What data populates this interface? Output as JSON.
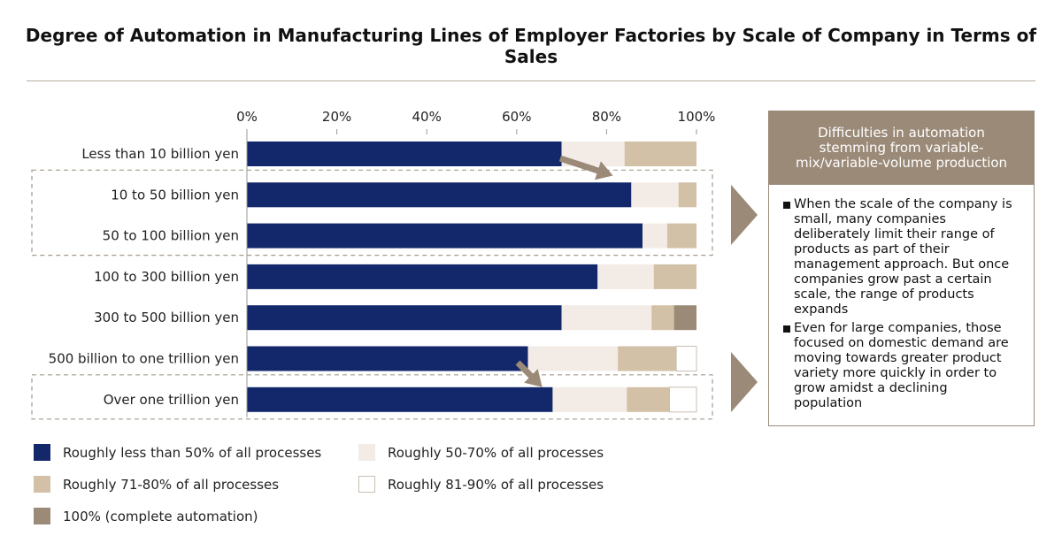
{
  "title": "Degree of Automation in Manufacturing Lines of Employer Factories by Scale of Company in Terms of Sales",
  "chart_data": {
    "type": "bar",
    "orientation": "horizontal",
    "stacked": true,
    "x_ticks": [
      "0%",
      "20%",
      "40%",
      "60%",
      "80%",
      "100%"
    ],
    "xlim": [
      0,
      100
    ],
    "categories": [
      "Less than 10 billion yen",
      "10 to 50 billion yen",
      "50 to 100 billion yen",
      "100 to 300 billion yen",
      "300 to 500 billion yen",
      "500 billion to one trillion yen",
      "Over one trillion yen"
    ],
    "series": [
      {
        "name": "Roughly less than 50% of all processes",
        "color": "#13286a",
        "values": [
          70,
          85.5,
          88,
          78,
          70,
          62.5,
          68
        ]
      },
      {
        "name": "Roughly 50-70% of all processes",
        "color": "#f3ece6",
        "values": [
          14,
          10.5,
          5.5,
          12.5,
          20,
          20,
          16.5
        ]
      },
      {
        "name": "Roughly 71-80% of all processes",
        "color": "#d2c1a6",
        "values": [
          16,
          4,
          6.5,
          9.5,
          5,
          13,
          9.5
        ]
      },
      {
        "name": "Roughly 81-90% of all processes",
        "color": "#ffffff",
        "values": [
          0,
          0,
          0,
          0,
          0,
          4.5,
          6
        ]
      },
      {
        "name": "100% (complete automation)",
        "color": "#9b8a78",
        "values": [
          0,
          0,
          0,
          0,
          5,
          0,
          0
        ]
      }
    ],
    "legend_position": "bottom",
    "grid": false
  },
  "legend": [
    {
      "label": "Roughly less than 50% of all processes",
      "color": "#13286a"
    },
    {
      "label": "Roughly 50-70% of all processes",
      "color": "#f3ece6"
    },
    {
      "label": "Roughly 71-80% of all processes",
      "color": "#d2c1a6"
    },
    {
      "label": "Roughly 81-90% of all processes",
      "color": "#ffffff"
    },
    {
      "label": "100% (complete automation)",
      "color": "#9b8a78"
    }
  ],
  "panel": {
    "heading": "Difficulties in automation stemming from variable-mix/variable-volume production",
    "bullets": [
      "When the scale of the company is small, many companies deliberately limit their range of products as part of their management approach. But once companies grow past a certain scale, the range of products expands",
      "Even for large companies, those focused on domestic demand are moving towards greater product variety more quickly in order to grow amidst a declining population"
    ]
  },
  "colors": {
    "accent": "#9b8a78",
    "navy": "#13286a"
  }
}
